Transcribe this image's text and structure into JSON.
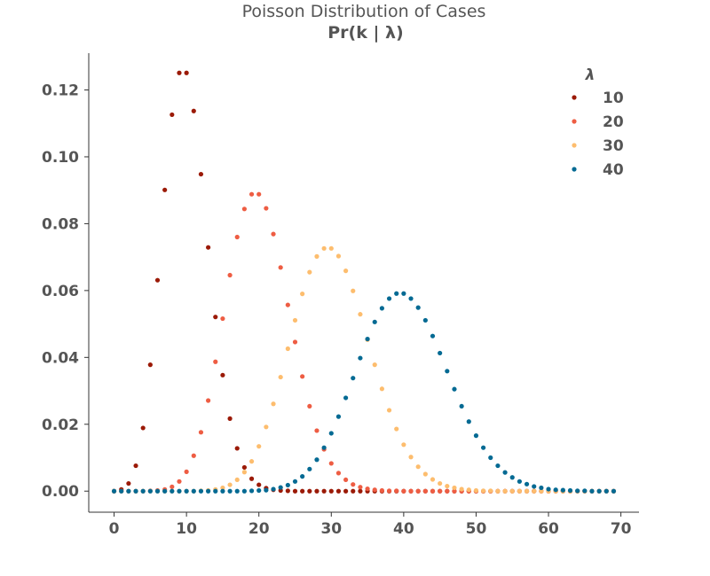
{
  "chart_data": {
    "type": "scatter",
    "title": "Poisson Distribution of Cases",
    "subtitle": "Pr(k | λ)",
    "xlabel": "",
    "ylabel": "",
    "xlim": [
      -3.5,
      72.5
    ],
    "ylim": [
      -0.0063,
      0.131
    ],
    "xticks": [
      0,
      10,
      20,
      30,
      40,
      50,
      60,
      70
    ],
    "yticks": [
      0.0,
      0.02,
      0.04,
      0.06,
      0.08,
      0.1,
      0.12
    ],
    "ytick_labels": [
      "0.00",
      "0.02",
      "0.04",
      "0.06",
      "0.08",
      "0.10",
      "0.12"
    ],
    "grid": false,
    "legend": {
      "title": "λ",
      "placement": "top-right"
    },
    "k_range": [
      0,
      69
    ],
    "series": [
      {
        "name": "10",
        "lambda": 10,
        "color": "#9b1a07",
        "values": [
          0.0,
          0.0005,
          0.0023,
          0.0076,
          0.0189,
          0.0378,
          0.0631,
          0.0901,
          0.1126,
          0.1251,
          0.1251,
          0.1137,
          0.0948,
          0.0729,
          0.0521,
          0.0347,
          0.0217,
          0.0128,
          0.0071,
          0.0037,
          0.0019,
          0.0009,
          0.0004,
          0.0002,
          0.0001,
          0.0,
          0.0,
          0.0,
          0.0,
          0.0,
          0.0,
          0.0,
          0.0,
          0.0,
          0.0,
          0.0,
          0.0,
          0.0,
          0.0,
          0.0,
          0.0,
          0.0,
          0.0,
          0.0,
          0.0,
          0.0,
          0.0,
          0.0,
          0.0,
          0.0,
          0.0,
          0.0,
          0.0,
          0.0,
          0.0,
          0.0,
          0.0,
          0.0,
          0.0,
          0.0,
          0.0,
          0.0,
          0.0,
          0.0,
          0.0,
          0.0,
          0.0,
          0.0,
          0.0,
          0.0
        ]
      },
      {
        "name": "20",
        "lambda": 20,
        "color": "#ee5d43",
        "values": [
          0.0,
          0.0,
          0.0,
          0.0,
          0.0,
          0.0001,
          0.0002,
          0.0005,
          0.0013,
          0.0029,
          0.0058,
          0.0106,
          0.0176,
          0.0271,
          0.0387,
          0.0516,
          0.0646,
          0.076,
          0.0844,
          0.0888,
          0.0888,
          0.0846,
          0.0769,
          0.0669,
          0.0557,
          0.0446,
          0.0343,
          0.0254,
          0.0181,
          0.0125,
          0.0083,
          0.0054,
          0.0034,
          0.002,
          0.0012,
          0.0007,
          0.0004,
          0.0002,
          0.0001,
          0.0001,
          0.0,
          0.0,
          0.0,
          0.0,
          0.0,
          0.0,
          0.0,
          0.0,
          0.0,
          0.0,
          0.0,
          0.0,
          0.0,
          0.0,
          0.0,
          0.0,
          0.0,
          0.0,
          0.0,
          0.0,
          0.0,
          0.0,
          0.0,
          0.0,
          0.0,
          0.0,
          0.0,
          0.0,
          0.0,
          0.0
        ]
      },
      {
        "name": "30",
        "lambda": 30,
        "color": "#fdbd6e",
        "values": [
          0.0,
          0.0,
          0.0,
          0.0,
          0.0,
          0.0,
          0.0,
          0.0,
          0.0,
          0.0,
          0.0,
          0.0,
          0.0001,
          0.0002,
          0.0005,
          0.001,
          0.0019,
          0.0034,
          0.0057,
          0.0089,
          0.0134,
          0.0192,
          0.0261,
          0.0341,
          0.0426,
          0.0511,
          0.059,
          0.0655,
          0.0702,
          0.0726,
          0.0726,
          0.0703,
          0.0659,
          0.0599,
          0.0529,
          0.0453,
          0.0378,
          0.0306,
          0.0242,
          0.0186,
          0.0139,
          0.0102,
          0.0073,
          0.0051,
          0.0035,
          0.0023,
          0.0015,
          0.001,
          0.0006,
          0.0004,
          0.0002,
          0.0001,
          0.0001,
          0.0,
          0.0,
          0.0,
          0.0,
          0.0,
          0.0,
          0.0,
          0.0,
          0.0,
          0.0,
          0.0,
          0.0,
          0.0,
          0.0,
          0.0,
          0.0,
          0.0
        ]
      },
      {
        "name": "40",
        "lambda": 40,
        "color": "#046a93",
        "values": [
          0.0,
          0.0,
          0.0,
          0.0,
          0.0,
          0.0,
          0.0,
          0.0,
          0.0,
          0.0,
          0.0,
          0.0,
          0.0,
          0.0,
          0.0,
          0.0,
          0.0,
          0.0,
          0.0,
          0.0001,
          0.0002,
          0.0003,
          0.0006,
          0.0011,
          0.0018,
          0.0029,
          0.0044,
          0.0066,
          0.0094,
          0.013,
          0.0173,
          0.0223,
          0.0279,
          0.0338,
          0.0398,
          0.0455,
          0.0506,
          0.0547,
          0.0576,
          0.0591,
          0.0591,
          0.0576,
          0.0549,
          0.0511,
          0.0464,
          0.0413,
          0.0359,
          0.0305,
          0.0254,
          0.0208,
          0.0166,
          0.013,
          0.01,
          0.0076,
          0.0056,
          0.0041,
          0.0029,
          0.0021,
          0.0014,
          0.001,
          0.0006,
          0.0004,
          0.0003,
          0.0002,
          0.0001,
          0.0001,
          0.0,
          0.0,
          0.0,
          0.0
        ]
      }
    ]
  }
}
